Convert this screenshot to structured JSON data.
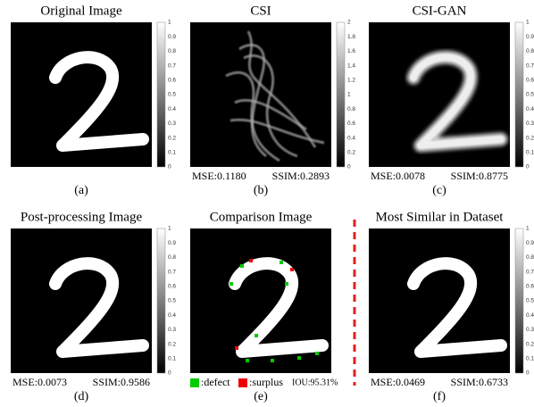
{
  "panels": [
    {
      "title": "Original Image",
      "label": "(a)",
      "colorbar_ticks": [
        "0",
        "0.1",
        "0.2",
        "0.3",
        "0.4",
        "0.5",
        "0.6",
        "0.7",
        "0.8",
        "0.9",
        "1"
      ]
    },
    {
      "title": "CSI",
      "label": "(b)",
      "metrics": [
        "MSE:0.1180",
        "SSIM:0.2893"
      ],
      "colorbar_ticks": [
        "0",
        "0.2",
        "0.4",
        "0.6",
        "0.8",
        "1",
        "1.2",
        "1.4",
        "1.6",
        "1.8",
        "2"
      ]
    },
    {
      "title": "CSI-GAN",
      "label": "(c)",
      "metrics": [
        "MSE:0.0078",
        "SSIM:0.8775"
      ],
      "colorbar_ticks": [
        "0",
        "0.1",
        "0.2",
        "0.3",
        "0.4",
        "0.5",
        "0.6",
        "0.7",
        "0.8",
        "0.9",
        "1"
      ]
    },
    {
      "title": "Post-processing Image",
      "label": "(d)",
      "metrics": [
        "MSE:0.0073",
        "SSIM:0.9586"
      ],
      "colorbar_ticks": [
        "0",
        "0.1",
        "0.2",
        "0.3",
        "0.4",
        "0.5",
        "0.6",
        "0.7",
        "0.8",
        "0.9",
        "1"
      ]
    },
    {
      "title": "Comparison Image",
      "label": "(e)",
      "legend": {
        "defect": ":defect",
        "surplus": ":surplus",
        "iou": "IOU:95.31%"
      }
    },
    {
      "title": "Most Similar in Dataset",
      "label": "(f)",
      "metrics": [
        "MSE:0.0469",
        "SSIM:0.6733"
      ],
      "colorbar_ticks": [
        "0",
        "0.1",
        "0.2",
        "0.3",
        "0.4",
        "0.5",
        "0.6",
        "0.7",
        "0.8",
        "0.9",
        "1"
      ]
    }
  ]
}
